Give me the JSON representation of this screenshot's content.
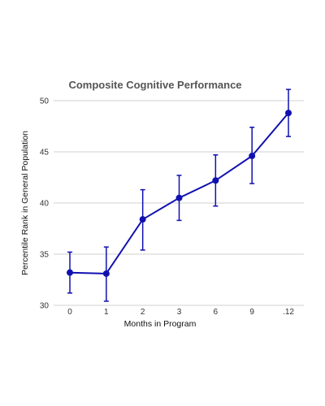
{
  "chart_data": {
    "type": "line",
    "title": "Composite Cognitive Performance",
    "xlabel": "Months in Program",
    "ylabel": "Percentile Rank in General Population",
    "categories": [
      "0",
      "1",
      "2",
      "3",
      "6",
      "9",
      ".12"
    ],
    "series": [
      {
        "values": [
          33.2,
          33.1,
          38.4,
          40.5,
          42.2,
          44.6,
          48.8
        ],
        "error_low": [
          31.2,
          30.4,
          35.4,
          38.3,
          39.7,
          41.9,
          46.5
        ],
        "error_high": [
          35.2,
          35.7,
          41.3,
          42.7,
          44.7,
          47.4,
          51.1
        ]
      }
    ],
    "ylim": [
      30,
      50
    ],
    "yticks": [
      "30",
      "35",
      "40",
      "45",
      "50"
    ],
    "grid": true,
    "legend": "none",
    "colors": {
      "series": "#1010b0",
      "grid": "#d0d0d0"
    }
  }
}
